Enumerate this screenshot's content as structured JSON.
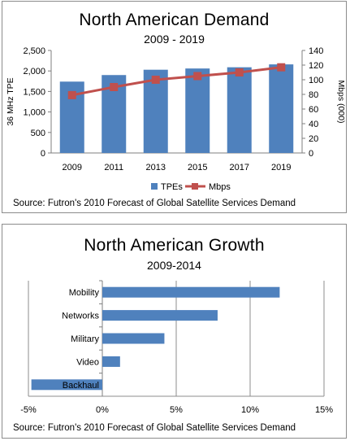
{
  "chart_data": [
    {
      "type": "bar+line",
      "title": "North American Demand",
      "subtitle": "2009 - 2019",
      "categories": [
        "2009",
        "2011",
        "2013",
        "2015",
        "2017",
        "2019"
      ],
      "series": [
        {
          "name": "TPEs",
          "type": "bar",
          "axis": "left",
          "values": [
            1740,
            1900,
            2030,
            2060,
            2090,
            2160
          ]
        },
        {
          "name": "Mbps",
          "type": "line",
          "axis": "right",
          "values": [
            79,
            90,
            100,
            105,
            110,
            117
          ]
        }
      ],
      "ylabel": "36 MHz TPE",
      "ylim": [
        0,
        2500
      ],
      "yticks": [
        "0",
        "500",
        "1,000",
        "1,500",
        "2,000",
        "2,500"
      ],
      "y2label": "Mbps (000)",
      "y2lim": [
        0,
        140
      ],
      "y2ticks": [
        "0",
        "20",
        "40",
        "60",
        "80",
        "100",
        "120",
        "140"
      ],
      "legend": "bottom",
      "grid": false,
      "source": "Source:  Futron's 2010  Forecast of Global Satellite Services Demand",
      "colors": {
        "bar": "#4f81bd",
        "line": "#c0504d"
      }
    },
    {
      "type": "bar",
      "orientation": "horizontal",
      "title": "North American Growth",
      "subtitle": "2009-2014",
      "categories": [
        "Mobility",
        "Networks",
        "Military",
        "Video",
        "Backhaul"
      ],
      "values": [
        12,
        7.8,
        4.2,
        1.2,
        -4.8
      ],
      "xlim": [
        -5,
        15
      ],
      "xticks": [
        "-5%",
        "0%",
        "5%",
        "10%",
        "15%"
      ],
      "grid": true,
      "source": "Source:  Futron's 2010  Forecast of Global Satellite Services Demand",
      "colors": {
        "bar": "#4f81bd"
      }
    }
  ]
}
